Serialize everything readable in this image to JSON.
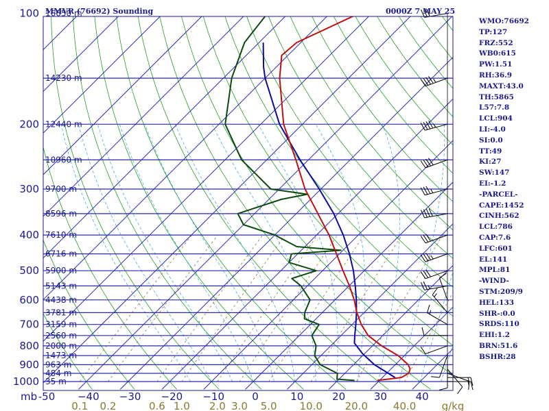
{
  "header": {
    "station_title": "MMVR (76692) Sounding",
    "datetime": "0000Z  7 MAY 25"
  },
  "colors": {
    "axis": "#1a1a8c",
    "isotherm": "#2a2ab4",
    "dry_adiabat": "#1ea01e",
    "moist_adiabat": "#4aa8e0",
    "mixing_ratio": "#8c7a2e",
    "temperature": "#c01010",
    "dewpoint": "#0d4a0d",
    "parcel": "#0a0aa0",
    "wind": "#000000"
  },
  "chart_data": {
    "type": "skew-t log-p sounding",
    "pressure_axis": {
      "unit_label": "mb",
      "range": [
        1000,
        100
      ],
      "scale": "log",
      "tick_labels": [
        "100",
        "200",
        "300",
        "400",
        "500",
        "600",
        "700",
        "800",
        "900",
        "1000"
      ]
    },
    "temperature_axis": {
      "range": [
        -50,
        50
      ],
      "tick_labels": [
        "-50",
        "−40",
        "−30",
        "−20",
        "−10",
        "0",
        "10",
        "20",
        "30",
        "40"
      ],
      "skewed": true
    },
    "mixing_ratio_axis": {
      "unit_label": "g/kg",
      "tick_labels": [
        "0.1",
        "0.2",
        "0.6",
        "1.0",
        "2.0",
        "3.0",
        "5.0",
        "10.0",
        "20.0",
        "40.0"
      ],
      "values": [
        0.1,
        0.2,
        0.6,
        1.0,
        2.0,
        3.0,
        5.0,
        10.0,
        20.0,
        40.0
      ]
    },
    "height_labels": [
      {
        "p": 100,
        "text": "16650 m"
      },
      {
        "p": 150,
        "text": "14230 m"
      },
      {
        "p": 200,
        "text": "12440 m"
      },
      {
        "p": 250,
        "text": "10960 m"
      },
      {
        "p": 300,
        "text": "9700 m"
      },
      {
        "p": 350,
        "text": "8596 m"
      },
      {
        "p": 400,
        "text": "7610 m"
      },
      {
        "p": 450,
        "text": "6716 m"
      },
      {
        "p": 500,
        "text": "5900 m"
      },
      {
        "p": 550,
        "text": "5143 m"
      },
      {
        "p": 600,
        "text": "4438 m"
      },
      {
        "p": 650,
        "text": "3781 m"
      },
      {
        "p": 700,
        "text": "3159 m"
      },
      {
        "p": 750,
        "text": "2560 m"
      },
      {
        "p": 800,
        "text": "2000 m"
      },
      {
        "p": 850,
        "text": "1473 m"
      },
      {
        "p": 900,
        "text": "963 m"
      },
      {
        "p": 950,
        "text": "484 m"
      },
      {
        "p": 1000,
        "text": "35 m"
      }
    ],
    "temperature_profile": [
      {
        "p": 993,
        "t": 29.5
      },
      {
        "p": 975,
        "t": 34.5
      },
      {
        "p": 950,
        "t": 35.3
      },
      {
        "p": 925,
        "t": 34.6
      },
      {
        "p": 900,
        "t": 33.1
      },
      {
        "p": 850,
        "t": 28.5
      },
      {
        "p": 800,
        "t": 22.2
      },
      {
        "p": 750,
        "t": 16.5
      },
      {
        "p": 700,
        "t": 12.2
      },
      {
        "p": 650,
        "t": 8.3
      },
      {
        "p": 600,
        "t": 4.6
      },
      {
        "p": 550,
        "t": 0.1
      },
      {
        "p": 500,
        "t": -5.1
      },
      {
        "p": 450,
        "t": -10.7
      },
      {
        "p": 400,
        "t": -17.0
      },
      {
        "p": 350,
        "t": -24.8
      },
      {
        "p": 300,
        "t": -33.8
      },
      {
        "p": 250,
        "t": -43.0
      },
      {
        "p": 200,
        "t": -54.5
      },
      {
        "p": 150,
        "t": -66.5
      },
      {
        "p": 130,
        "t": -71.5
      },
      {
        "p": 120,
        "t": -71.0
      },
      {
        "p": 100,
        "t": -63.0
      }
    ],
    "dewpoint_profile": [
      {
        "p": 993,
        "t": 24.0
      },
      {
        "p": 985,
        "t": 19.5
      },
      {
        "p": 950,
        "t": 18.2
      },
      {
        "p": 900,
        "t": 12.0
      },
      {
        "p": 850,
        "t": 8.5
      },
      {
        "p": 800,
        "t": 6.5
      },
      {
        "p": 750,
        "t": 3.0
      },
      {
        "p": 700,
        "t": 2.1
      },
      {
        "p": 675,
        "t": -2.8
      },
      {
        "p": 650,
        "t": -4.2
      },
      {
        "p": 600,
        "t": -6.0
      },
      {
        "p": 550,
        "t": -11.5
      },
      {
        "p": 525,
        "t": -15.5
      },
      {
        "p": 500,
        "t": -11.5
      },
      {
        "p": 475,
        "t": -20.0
      },
      {
        "p": 450,
        "t": -21.5
      },
      {
        "p": 440,
        "t": -10.5
      },
      {
        "p": 430,
        "t": -22.0
      },
      {
        "p": 400,
        "t": -30.0
      },
      {
        "p": 375,
        "t": -40.0
      },
      {
        "p": 350,
        "t": -44.0
      },
      {
        "p": 320,
        "t": -37.0
      },
      {
        "p": 310,
        "t": -32.0
      },
      {
        "p": 300,
        "t": -42.0
      },
      {
        "p": 250,
        "t": -56.0
      },
      {
        "p": 200,
        "t": -68.5
      },
      {
        "p": 150,
        "t": -78.0
      },
      {
        "p": 120,
        "t": -83.5
      },
      {
        "p": 100,
        "t": -85.0
      }
    ],
    "parcel_profile": [
      {
        "p": 975,
        "t": 33.0
      },
      {
        "p": 900,
        "t": 25.0
      },
      {
        "p": 840,
        "t": 19.5
      },
      {
        "p": 786,
        "t": 15.0
      },
      {
        "p": 750,
        "t": 13.3
      },
      {
        "p": 700,
        "t": 10.9
      },
      {
        "p": 650,
        "t": 8.2
      },
      {
        "p": 600,
        "t": 5.1
      },
      {
        "p": 550,
        "t": 1.5
      },
      {
        "p": 500,
        "t": -2.6
      },
      {
        "p": 450,
        "t": -7.6
      },
      {
        "p": 400,
        "t": -13.6
      },
      {
        "p": 350,
        "t": -21.0
      },
      {
        "p": 300,
        "t": -30.4
      },
      {
        "p": 250,
        "t": -42.0
      },
      {
        "p": 200,
        "t": -55.5
      },
      {
        "p": 150,
        "t": -70.0
      },
      {
        "p": 140,
        "t": -73.0
      },
      {
        "p": 120,
        "t": -79.0
      }
    ],
    "wind_profile": [
      {
        "p": 1000,
        "dir": 90,
        "spd": 15
      },
      {
        "p": 975,
        "dir": 90,
        "spd": 15
      },
      {
        "p": 950,
        "dir": 110,
        "spd": 10
      },
      {
        "p": 925,
        "dir": 140,
        "spd": 10
      },
      {
        "p": 900,
        "dir": 180,
        "spd": 10
      },
      {
        "p": 850,
        "dir": 200,
        "spd": 10
      },
      {
        "p": 800,
        "dir": 250,
        "spd": 10
      },
      {
        "p": 750,
        "dir": 270,
        "spd": 10
      },
      {
        "p": 700,
        "dir": 300,
        "spd": 15
      },
      {
        "p": 650,
        "dir": 320,
        "spd": 15
      },
      {
        "p": 600,
        "dir": 340,
        "spd": 10
      },
      {
        "p": 550,
        "dir": 260,
        "spd": 25
      },
      {
        "p": 500,
        "dir": 250,
        "spd": 30
      },
      {
        "p": 450,
        "dir": 250,
        "spd": 35
      },
      {
        "p": 400,
        "dir": 250,
        "spd": 30
      },
      {
        "p": 350,
        "dir": 260,
        "spd": 40
      },
      {
        "p": 300,
        "dir": 255,
        "spd": 35
      },
      {
        "p": 250,
        "dir": 250,
        "spd": 40
      },
      {
        "p": 200,
        "dir": 255,
        "spd": 45
      },
      {
        "p": 150,
        "dir": 250,
        "spd": 45
      },
      {
        "p": 100,
        "dir": 260,
        "spd": 30
      }
    ]
  },
  "parameters": [
    "WMO:76692",
    "TP:127",
    "FRZ:552",
    "WB0:615",
    "PW:1.51",
    "RH:36.9",
    "MAXT:43.0",
    "TH:5865",
    "L57:7.8",
    "LCL:904",
    "LI:-4.0",
    "SI:0.0",
    "TT:49",
    "KI:27",
    "SW:147",
    "EI:-1.2",
    "-PARCEL-",
    "CAPE:1452",
    "CINH:562",
    "LCL:786",
    "CAP:7.6",
    "LFC:601",
    "EL:141",
    "MPL:81",
    "-WIND-",
    "STM:209/9",
    "HEL:133",
    "SHR-:0.0",
    "SRDS:110",
    "EHI:1.2",
    "BRN:51.6",
    "BSHR:28"
  ]
}
